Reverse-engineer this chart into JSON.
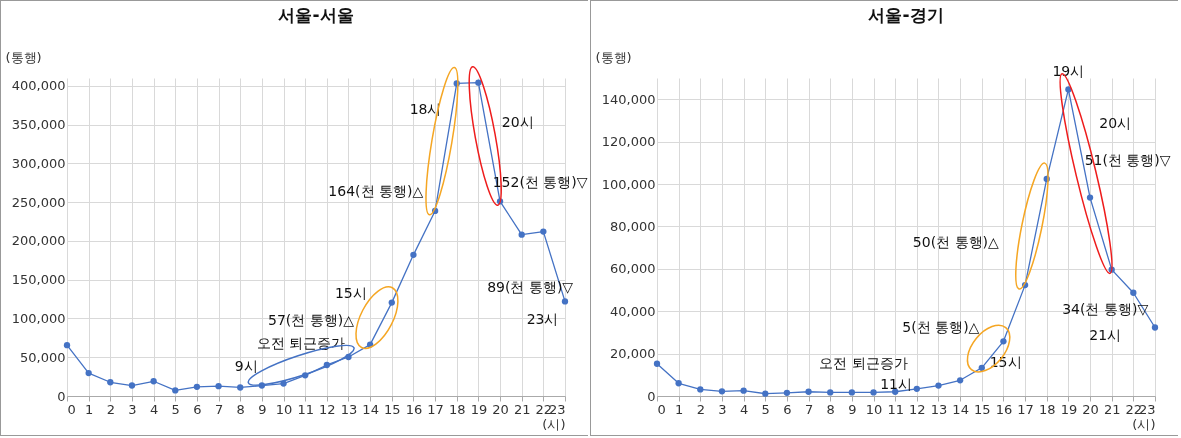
{
  "chart_data": [
    {
      "type": "line",
      "title": "서울-서울",
      "xlabel": "(시)",
      "ylabel": "(통행)",
      "x": [
        0,
        1,
        2,
        3,
        4,
        5,
        6,
        7,
        8,
        9,
        10,
        11,
        12,
        13,
        14,
        15,
        16,
        17,
        18,
        19,
        20,
        21,
        22,
        23
      ],
      "series": [
        {
          "color": "#4472c4",
          "values": [
            65500,
            29600,
            17700,
            13500,
            19000,
            7200,
            11800,
            12700,
            11000,
            13500,
            16000,
            26600,
            40000,
            50300,
            66300,
            120400,
            182000,
            238600,
            403000,
            404000,
            251000,
            208000,
            212000,
            122000
          ]
        }
      ],
      "xlim": [
        0,
        23
      ],
      "xticks": [
        0,
        1,
        2,
        3,
        4,
        5,
        6,
        7,
        8,
        9,
        10,
        11,
        12,
        13,
        14,
        15,
        16,
        17,
        18,
        19,
        20,
        21,
        22,
        23
      ],
      "ylim": [
        0,
        410000
      ],
      "yticks": [
        0,
        {
          "value": 50000,
          "label": "50,000"
        },
        {
          "value": 100000,
          "label": "100,000"
        },
        {
          "value": 150000,
          "label": "150,000"
        },
        {
          "value": 200000,
          "label": "200,000"
        },
        {
          "value": 250000,
          "label": "250,000"
        },
        {
          "value": 300000,
          "label": "300,000"
        },
        {
          "value": 350000,
          "label": "350,000"
        },
        {
          "value": 400000,
          "label": "400,000"
        }
      ],
      "grid": true,
      "marker": "circle",
      "line_style": "solid",
      "annotations": [
        "오전 퇴근증가",
        "9시",
        "57(천 통행)△",
        "15시",
        "164(천 통행)△",
        "18시",
        "20시",
        "152(천 통행)▽",
        "89(천 통행)▽",
        "23시"
      ]
    },
    {
      "type": "line",
      "title": "서울-경기",
      "xlabel": "(시)",
      "ylabel": "(통행)",
      "x": [
        0,
        1,
        2,
        3,
        4,
        5,
        6,
        7,
        8,
        9,
        10,
        11,
        12,
        13,
        14,
        15,
        16,
        17,
        18,
        19,
        20,
        21,
        22,
        23
      ],
      "series": [
        {
          "color": "#4472c4",
          "values": [
            15200,
            6000,
            3100,
            2200,
            2500,
            1100,
            1500,
            2000,
            1700,
            1700,
            1700,
            2000,
            3400,
            4900,
            7400,
            13300,
            25800,
            52300,
            102400,
            144600,
            93600,
            59600,
            48700,
            32300
          ]
        }
      ],
      "xlim": [
        0,
        23
      ],
      "xticks": [
        0,
        1,
        2,
        3,
        4,
        5,
        6,
        7,
        8,
        9,
        10,
        11,
        12,
        13,
        14,
        15,
        16,
        17,
        18,
        19,
        20,
        21,
        22,
        23
      ],
      "ylim": [
        0,
        150000
      ],
      "yticks": [
        0,
        {
          "value": 20000,
          "label": "20,000"
        },
        {
          "value": 40000,
          "label": "40,000"
        },
        {
          "value": 60000,
          "label": "60,000"
        },
        {
          "value": 80000,
          "label": "80,000"
        },
        {
          "value": 100000,
          "label": "100,000"
        },
        {
          "value": 120000,
          "label": "120,000"
        },
        {
          "value": 140000,
          "label": "140,000"
        }
      ],
      "grid": true,
      "marker": "circle",
      "line_style": "solid",
      "annotations": [
        "오전 퇴근증가",
        "11시",
        "5(천 통행)△",
        "15시",
        "50(천 통행)△",
        "19시",
        "20시",
        "51(천 통행)▽",
        "34(천 통행)▽",
        "21시"
      ]
    }
  ]
}
